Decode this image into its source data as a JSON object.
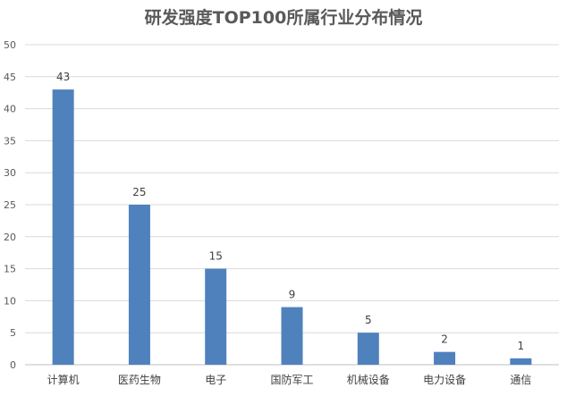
{
  "chart_data": {
    "type": "bar",
    "title": "研发强度TOP100所属行业分布情况",
    "categories": [
      "计算机",
      "医药生物",
      "电子",
      "国防军工",
      "机械设备",
      "电力设备",
      "通信"
    ],
    "values": [
      43,
      25,
      15,
      9,
      5,
      2,
      1
    ],
    "xlabel": "",
    "ylabel": "",
    "ylim": [
      0,
      50
    ],
    "yticks": [
      0,
      5,
      10,
      15,
      20,
      25,
      30,
      35,
      40,
      45,
      50
    ],
    "grid": true,
    "data_labels": true,
    "legend": "none",
    "colors": {
      "bar": "#4F81BD",
      "grid": "#D9D9D9",
      "text": "#595959"
    }
  }
}
